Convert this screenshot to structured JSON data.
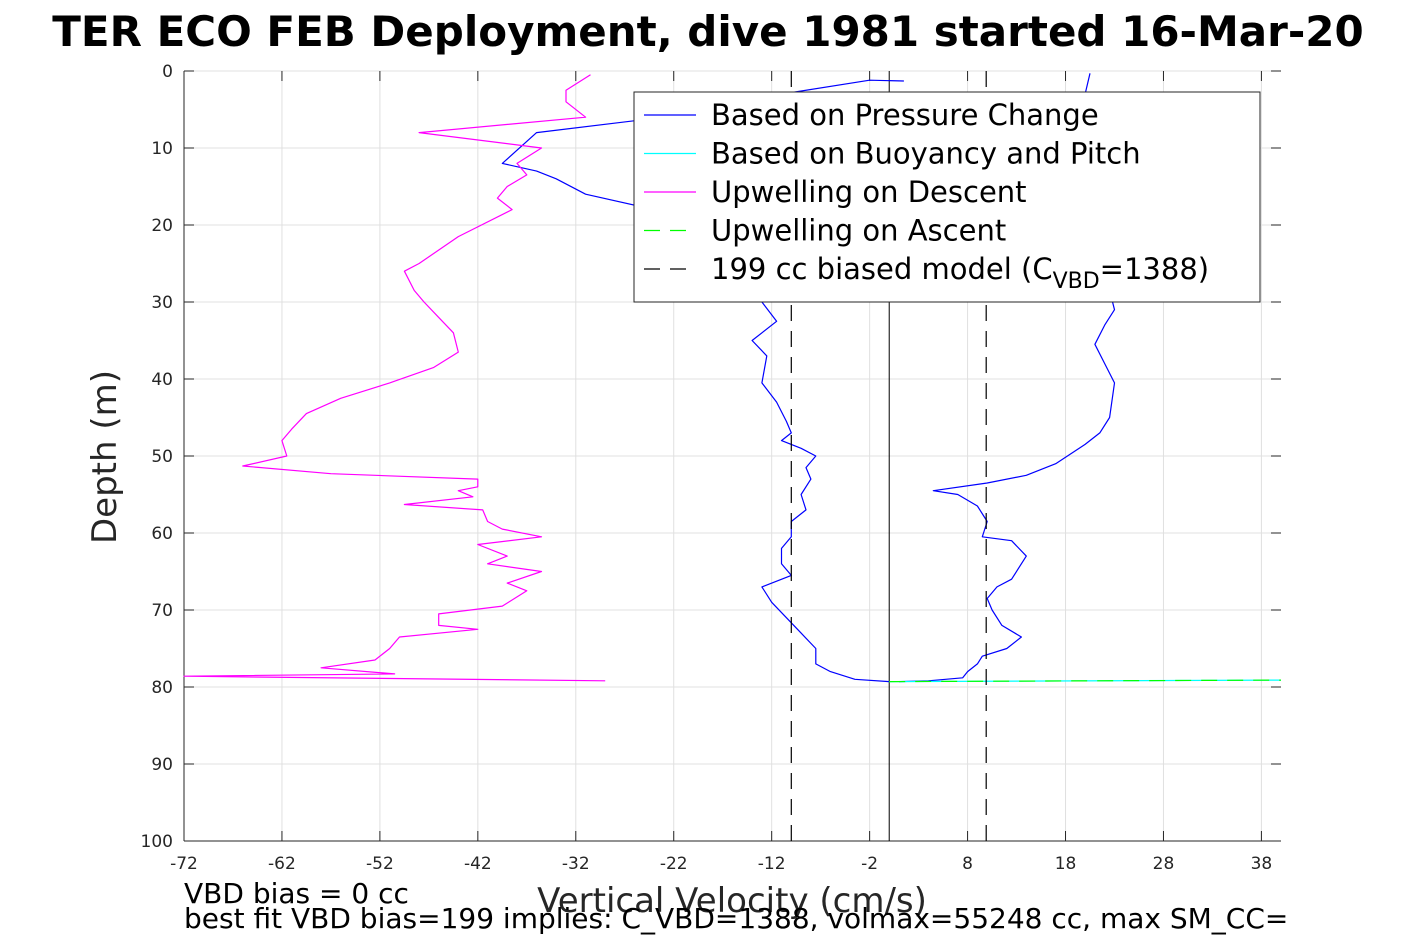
{
  "chart_data": {
    "type": "line",
    "title": "TER ECO FEB Deployment, dive 1981 started 16-Mar-20",
    "xlabel": "Vertical Velocity (cm/s)",
    "ylabel": "Depth (m)",
    "xlim": [
      -72,
      40
    ],
    "ylim": [
      0,
      100
    ],
    "y_reversed": true,
    "xticks": [
      -72,
      -62,
      -52,
      -42,
      -32,
      -22,
      -12,
      -2,
      8,
      18,
      28,
      38
    ],
    "yticks": [
      0,
      10,
      20,
      30,
      40,
      50,
      60,
      70,
      80,
      90,
      100
    ],
    "grid": true,
    "legend_position": "top-right",
    "legend": [
      {
        "label": "Based on Pressure Change",
        "color": "#0000ff",
        "dash": "solid"
      },
      {
        "label": "Based on Buoyancy and Pitch",
        "color": "#00ffff",
        "dash": "solid"
      },
      {
        "label": "Upwelling on Descent",
        "color": "#ff00ff",
        "dash": "solid"
      },
      {
        "label": "Upwelling on Ascent",
        "color": "#00ff00",
        "dash": "dashed"
      },
      {
        "label": "199 cc biased model (C",
        "sub": "VBD",
        "suffix": "=1388)",
        "color": "#000000",
        "dash": "dashed"
      }
    ],
    "series": [
      {
        "name": "Based on Pressure Change",
        "color": "#0000ff",
        "dash": "solid",
        "points": [
          [
            1.5,
            1.3
          ],
          [
            -2,
            1.2
          ],
          [
            -11,
            3
          ],
          [
            -23,
            6
          ],
          [
            -36,
            8
          ],
          [
            -39.5,
            12
          ],
          [
            -36,
            13
          ],
          [
            -34,
            14
          ],
          [
            -31,
            16
          ],
          [
            -24,
            18
          ],
          [
            -18,
            19.5
          ],
          [
            -16,
            22
          ],
          [
            -14,
            25
          ],
          [
            -13,
            28
          ],
          [
            -13,
            30
          ],
          [
            -11.5,
            32.5
          ],
          [
            -14,
            35
          ],
          [
            -12.5,
            37
          ],
          [
            -13,
            40.5
          ],
          [
            -11.5,
            43
          ],
          [
            -10.5,
            45.5
          ],
          [
            -10,
            47
          ],
          [
            -11,
            48
          ],
          [
            -9,
            49
          ],
          [
            -7.5,
            50
          ],
          [
            -8.5,
            51.5
          ],
          [
            -8,
            53
          ],
          [
            -9,
            55
          ],
          [
            -8.5,
            57
          ],
          [
            -10,
            58.5
          ],
          [
            -10,
            60.5
          ],
          [
            -11,
            62
          ],
          [
            -11,
            64
          ],
          [
            -10,
            65.5
          ],
          [
            -13,
            67
          ],
          [
            -12,
            69
          ],
          [
            -10.5,
            71
          ],
          [
            -9,
            73
          ],
          [
            -7.5,
            75
          ],
          [
            -7.5,
            77
          ],
          [
            -6,
            78
          ],
          [
            -3.5,
            79
          ],
          [
            0,
            79.3
          ]
        ]
      },
      {
        "name": "Based on Pressure Change",
        "color": "#0000ff",
        "dash": "solid",
        "points": [
          [
            20.5,
            0.3
          ],
          [
            20,
            3
          ],
          [
            21,
            8
          ],
          [
            22,
            14
          ],
          [
            22.5,
            20
          ],
          [
            22,
            26
          ],
          [
            23,
            31
          ],
          [
            22,
            33
          ],
          [
            21,
            35.5
          ],
          [
            22,
            38
          ],
          [
            23,
            40.5
          ],
          [
            22.5,
            45
          ],
          [
            21.5,
            47
          ],
          [
            20,
            48.5
          ],
          [
            17,
            51
          ],
          [
            14,
            52.5
          ],
          [
            10,
            53.5
          ],
          [
            4.5,
            54.5
          ],
          [
            7,
            55
          ],
          [
            9,
            56.5
          ],
          [
            10,
            58.5
          ],
          [
            9.5,
            60.5
          ],
          [
            12.5,
            61
          ],
          [
            14,
            63
          ],
          [
            12.5,
            66
          ],
          [
            11,
            67
          ],
          [
            10,
            68.5
          ],
          [
            10.5,
            70
          ],
          [
            11.5,
            72
          ],
          [
            13.5,
            73.5
          ],
          [
            12,
            75
          ],
          [
            9.5,
            76
          ],
          [
            9,
            77
          ],
          [
            8,
            78
          ],
          [
            7.5,
            78.8
          ],
          [
            4,
            79.2
          ],
          [
            1,
            79.3
          ]
        ]
      },
      {
        "name": "Based on Buoyancy and Pitch",
        "color": "#00ffff",
        "dash": "solid",
        "points": [
          [
            0,
            79.3
          ],
          [
            40,
            79.1
          ]
        ]
      },
      {
        "name": "Upwelling on Descent",
        "color": "#ff00ff",
        "dash": "solid",
        "points": [
          [
            -30.5,
            0.5
          ],
          [
            -33,
            2.5
          ],
          [
            -33,
            4
          ],
          [
            -31,
            6
          ],
          [
            -48,
            8
          ],
          [
            -35.5,
            10
          ],
          [
            -38,
            12
          ],
          [
            -37,
            13.5
          ],
          [
            -39,
            15
          ],
          [
            -40,
            16.5
          ],
          [
            -38.5,
            18
          ],
          [
            -44,
            21.5
          ],
          [
            -48,
            25
          ],
          [
            -49.5,
            26
          ],
          [
            -48.5,
            28.5
          ],
          [
            -47.5,
            30
          ],
          [
            -46,
            32
          ],
          [
            -44.5,
            34
          ],
          [
            -44,
            36.5
          ],
          [
            -46.5,
            38.5
          ],
          [
            -51,
            40.5
          ],
          [
            -56,
            42.5
          ],
          [
            -59.5,
            44.5
          ],
          [
            -61,
            46.5
          ],
          [
            -62,
            48
          ],
          [
            -61.5,
            50
          ],
          [
            -66,
            51.3
          ],
          [
            -57,
            52.3
          ],
          [
            -42,
            53
          ],
          [
            -42,
            54
          ],
          [
            -44,
            54.5
          ],
          [
            -42.5,
            55.3
          ],
          [
            -49.5,
            56.3
          ],
          [
            -41.5,
            57
          ],
          [
            -41,
            58.5
          ],
          [
            -39.5,
            59.5
          ],
          [
            -35.5,
            60.5
          ],
          [
            -42,
            61.5
          ],
          [
            -39,
            63
          ],
          [
            -41,
            64
          ],
          [
            -35.5,
            65
          ],
          [
            -39,
            66.5
          ],
          [
            -37,
            67.5
          ],
          [
            -39.5,
            69.5
          ],
          [
            -46,
            70.5
          ],
          [
            -46,
            72
          ],
          [
            -42,
            72.5
          ],
          [
            -50,
            73.5
          ],
          [
            -51,
            75
          ],
          [
            -52.5,
            76.5
          ],
          [
            -58,
            77.5
          ],
          [
            -50.5,
            78.3
          ],
          [
            -72,
            78.6
          ],
          [
            -29,
            79.2
          ]
        ]
      },
      {
        "name": "Upwelling on Ascent",
        "color": "#00ff00",
        "dash": "dashed",
        "points": [
          [
            0,
            79.3
          ],
          [
            40,
            79.1
          ]
        ]
      },
      {
        "name": "199 cc biased model",
        "color": "#000000",
        "dash": "dashed",
        "points": [
          [
            -10,
            0
          ],
          [
            -10,
            100
          ]
        ]
      },
      {
        "name": "199 cc biased model",
        "color": "#000000",
        "dash": "dashed",
        "points": [
          [
            9.9,
            0
          ],
          [
            9.9,
            100
          ]
        ]
      }
    ],
    "reference_lines": [
      {
        "x": 0,
        "color": "#000000",
        "dash": "solid"
      }
    ],
    "annotations": [
      "VBD bias = 0 cc",
      "best fit VBD bias=199 implies: C_VBD=1388, volmax=55248 cc, max SM_CC="
    ]
  }
}
